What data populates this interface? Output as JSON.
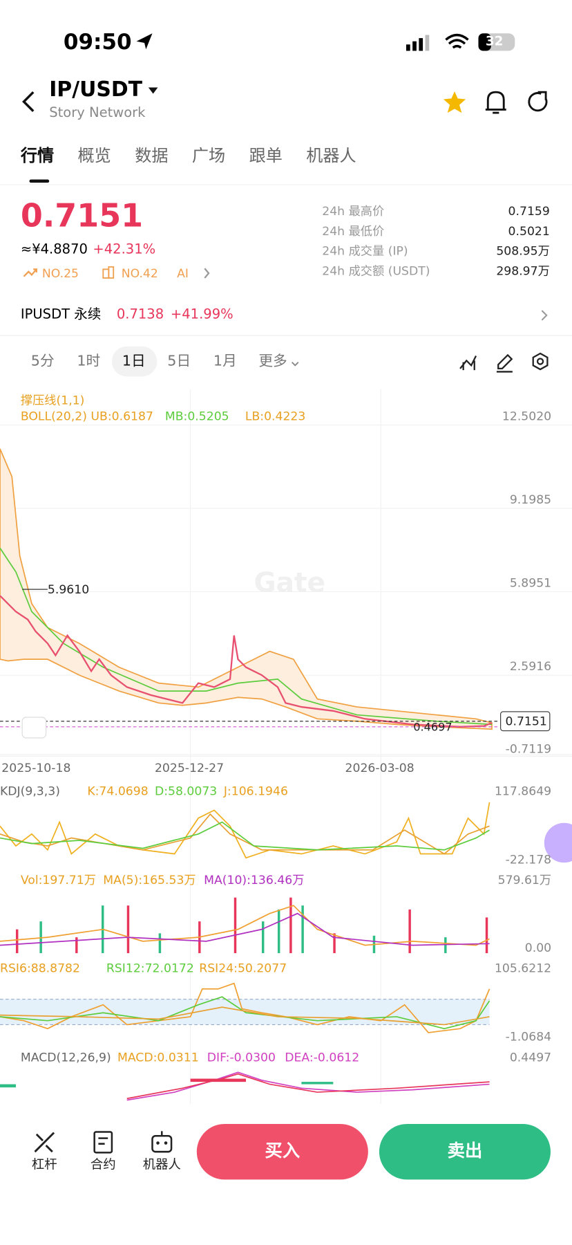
{
  "status": {
    "time": "09:50",
    "battery": "32"
  },
  "header": {
    "pair": "IP/USDT",
    "subtitle": "Story Network"
  },
  "tabs": [
    "行情",
    "概览",
    "数据",
    "广场",
    "跟单",
    "机器人"
  ],
  "ticker": {
    "price": "0.7151",
    "cny": "≈¥4.8870",
    "change": "+42.31%",
    "badges": [
      "NO.25",
      "NO.42",
      "AI"
    ]
  },
  "stats": [
    {
      "label": "24h 最高价",
      "value": "0.7159"
    },
    {
      "label": "24h 最低价",
      "value": "0.5021"
    },
    {
      "label": "24h 成交量 (IP)",
      "value": "508.95万"
    },
    {
      "label": "24h 成交额 (USDT)",
      "value": "298.97万"
    }
  ],
  "perp": {
    "name": "IPUSDT 永续",
    "price": "0.7138",
    "change": "+41.99%"
  },
  "intervals": [
    "5分",
    "1时",
    "1日",
    "5日",
    "1月",
    "更多"
  ],
  "main_chart": {
    "indicator": "撑压线(1,1)",
    "boll": [
      "BOLL(20,2) UB:0.6187",
      "MB:0.5205",
      "LB:0.4223"
    ],
    "yaxis": [
      "12.5020",
      "9.1985",
      "5.8951",
      "2.5916",
      "-0.7119"
    ],
    "high": "5.9610",
    "low": "0.4697",
    "current": "0.7151",
    "watermark": "Gate",
    "dates": [
      "2025-10-18",
      "2025-12-27",
      "2026-03-08"
    ]
  },
  "kdj": {
    "labels": [
      "KDJ(9,3,3)",
      "K:74.0698",
      "D:58.0073",
      "J:106.1946"
    ],
    "yaxis": [
      "117.8649",
      "-22.178"
    ]
  },
  "vol": {
    "labels": [
      "Vol:197.71万",
      "MA(5):165.53万",
      "MA(10):136.46万"
    ],
    "yaxis": [
      "579.61万",
      "0.00"
    ]
  },
  "rsi": {
    "labels": [
      "RSI6:88.8782",
      "RSI12:72.0172",
      "RSI24:50.2077"
    ],
    "yaxis": [
      "105.6212",
      "-1.0684"
    ]
  },
  "macd": {
    "labels": [
      "MACD(12,26,9)",
      "MACD:0.0311",
      "DIF:-0.0300",
      "DEA:-0.0612"
    ],
    "yaxis": [
      "0.4497"
    ]
  },
  "bottom": {
    "tools": [
      "杠杆",
      "合约",
      "机器人"
    ],
    "buy": "买入",
    "sell": "卖出"
  }
}
